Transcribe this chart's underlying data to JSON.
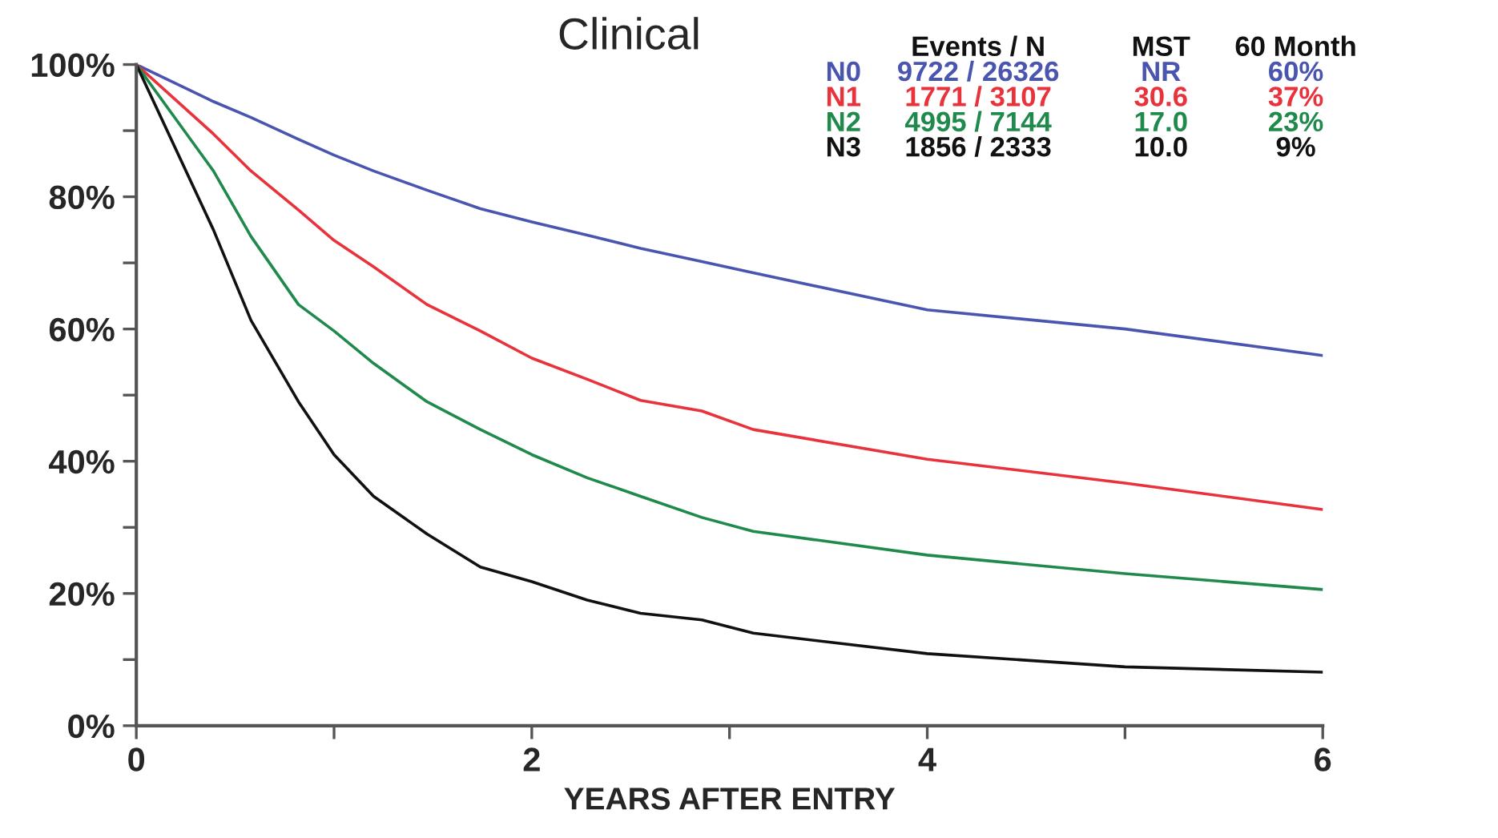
{
  "chart_data": {
    "type": "line",
    "title": "Clinical",
    "xlabel": "YEARS AFTER ENTRY",
    "x": [
      0,
      0.39,
      0.58,
      0.82,
      1.0,
      1.2,
      1.47,
      1.74,
      2.0,
      2.28,
      2.55,
      2.86,
      3.12,
      4,
      5,
      6
    ],
    "series": [
      {
        "name": "N0",
        "color": "#4a55b0",
        "values": [
          100,
          94.4,
          92,
          88.7,
          86.3,
          83.9,
          81,
          78.2,
          76.2,
          74.2,
          72.2,
          70.2,
          68.5,
          62.9,
          60,
          56
        ]
      },
      {
        "name": "N1",
        "color": "#e8323c",
        "values": [
          100,
          89.5,
          83.9,
          78,
          73.4,
          69.4,
          63.7,
          59.7,
          55.6,
          52.4,
          49.2,
          47.6,
          44.8,
          40.3,
          36.7,
          32.7
        ]
      },
      {
        "name": "N2",
        "color": "#1f8a4c",
        "values": [
          100,
          83.9,
          74,
          63.7,
          59.7,
          54.8,
          49,
          44.8,
          41,
          37.5,
          34.7,
          31.5,
          29.4,
          25.8,
          23,
          20.6
        ]
      },
      {
        "name": "N3",
        "color": "#111111",
        "values": [
          100,
          75,
          61.3,
          49,
          41,
          34.7,
          29,
          24,
          21.8,
          19,
          17,
          16,
          14,
          10.9,
          8.9,
          8.1
        ]
      }
    ],
    "annotations": [
      "Events / N",
      "MST",
      "60 Month",
      "9722 / 26326",
      "NR",
      "60%",
      "1771 / 3107",
      "30.6",
      "37%",
      "4995 / 7144",
      "17.0",
      "23%",
      "1856 / 2333",
      "10.0",
      "9%"
    ],
    "xlim": [
      0,
      6
    ],
    "ylim": [
      0,
      100
    ],
    "xticks": [
      0,
      {
        "value": 1,
        "label": null
      },
      2,
      {
        "value": 3,
        "label": null
      },
      4,
      {
        "value": 5,
        "label": null
      },
      6
    ],
    "yticks": [
      {
        "value": 0,
        "label": "0%"
      },
      {
        "value": 10,
        "label": null
      },
      {
        "value": 20,
        "label": "20%"
      },
      {
        "value": 30,
        "label": null
      },
      {
        "value": 40,
        "label": "40%"
      },
      {
        "value": 50,
        "label": null
      },
      {
        "value": 60,
        "label": "60%"
      },
      {
        "value": 70,
        "label": null
      },
      {
        "value": 80,
        "label": "80%"
      },
      {
        "value": 90,
        "label": null
      },
      {
        "value": 100,
        "label": "100%"
      }
    ],
    "grid": false,
    "legend": false,
    "marker": "none",
    "line_style": "solid"
  }
}
